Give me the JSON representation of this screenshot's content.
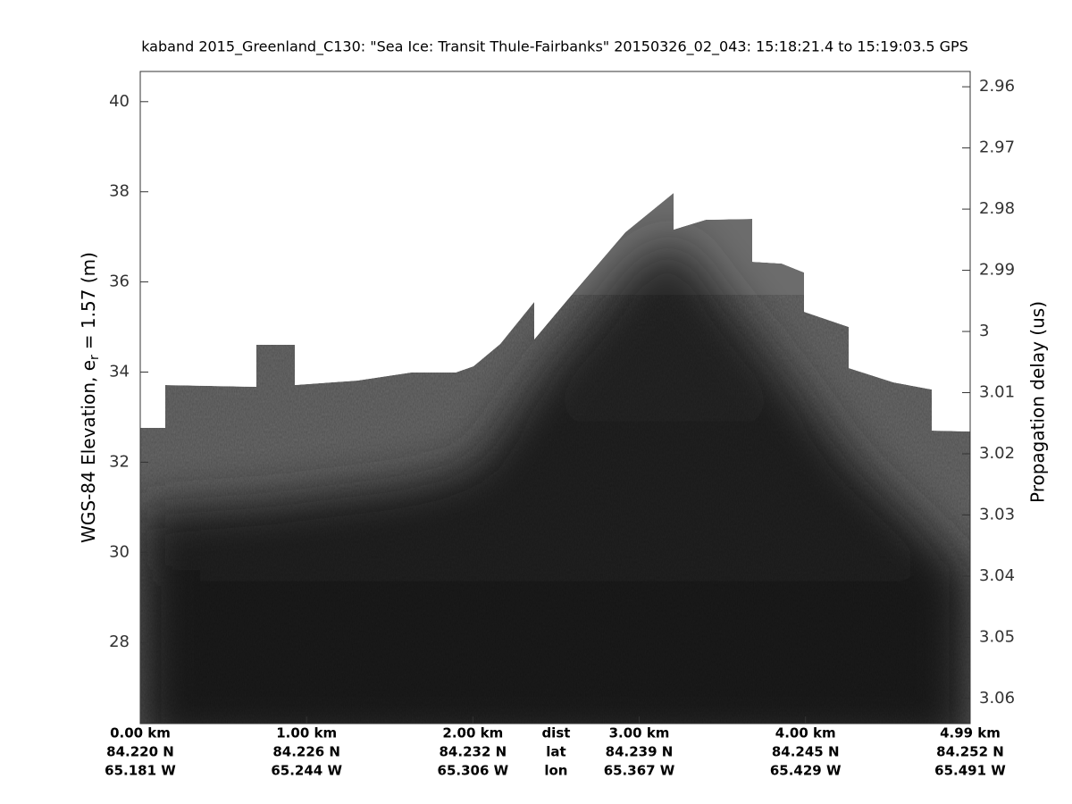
{
  "chart_data": {
    "type": "echogram",
    "title": "kaband 2015_Greenland_C130: \"Sea Ice: Transit Thule-Fairbanks\"  20150326_02_043: 15:18:21.4 to 15:19:03.5 GPS",
    "ylabel": "WGS-84 Elevation, e",
    "ylabel_sub": "r",
    "ylabel_end": "= 1.57 (m)",
    "y2label": "Propagation delay (us)",
    "ylim": [
      26.2,
      40.67
    ],
    "yticks": [
      28,
      30,
      32,
      34,
      36,
      38,
      40
    ],
    "y2lim": [
      3.0641,
      2.9575
    ],
    "y2ticks": [
      2.96,
      2.97,
      2.98,
      2.99,
      {
        "value": 3.0,
        "label": "3"
      },
      3.01,
      3.02,
      3.03,
      3.04,
      3.05,
      3.06
    ],
    "xlim": [
      0,
      4.99
    ],
    "xticks": [
      {
        "value": 0,
        "label": "0.00 km"
      },
      {
        "value": 1,
        "label": "1.00 km"
      },
      {
        "value": 2,
        "label": "2.00 km"
      },
      {
        "value": 3,
        "label": "3.00 km"
      },
      {
        "value": 4,
        "label": "4.00 km"
      },
      {
        "value": 4.99,
        "label": "4.99 km"
      }
    ],
    "lat_labels": [
      "84.220 N",
      "84.226 N",
      "84.232 N",
      "84.239 N",
      "84.245 N",
      "84.252 N"
    ],
    "lon_labels": [
      "65.181 W",
      "65.244 W",
      "65.306 W",
      "65.367 W",
      "65.429 W",
      "65.491 W"
    ],
    "row_names": [
      "dist",
      "lat",
      "lon"
    ]
  }
}
